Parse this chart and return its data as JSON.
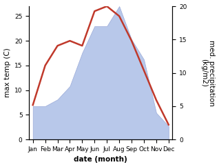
{
  "months": [
    "Jan",
    "Feb",
    "Mar",
    "Apr",
    "May",
    "Jun",
    "Jul",
    "Aug",
    "Sep",
    "Oct",
    "Nov",
    "Dec"
  ],
  "temperature": [
    7,
    15,
    19,
    20,
    19,
    26,
    27,
    25,
    20,
    14,
    8,
    3
  ],
  "precipitation": [
    5,
    5,
    6,
    8,
    13,
    17,
    17,
    20,
    15,
    12,
    4,
    2
  ],
  "temp_color": "#c0392b",
  "precip_color_fill": "#b8c8ea",
  "precip_color_edge": "#9aaad8",
  "ylabel_left": "max temp (C)",
  "ylabel_right": "med. precipitation\n(kg/m2)",
  "xlabel": "date (month)",
  "ylim_left": [
    0,
    27
  ],
  "ylim_right": [
    0,
    20
  ],
  "temp_linewidth": 1.8,
  "label_fontsize": 7.5,
  "tick_fontsize": 6.5
}
